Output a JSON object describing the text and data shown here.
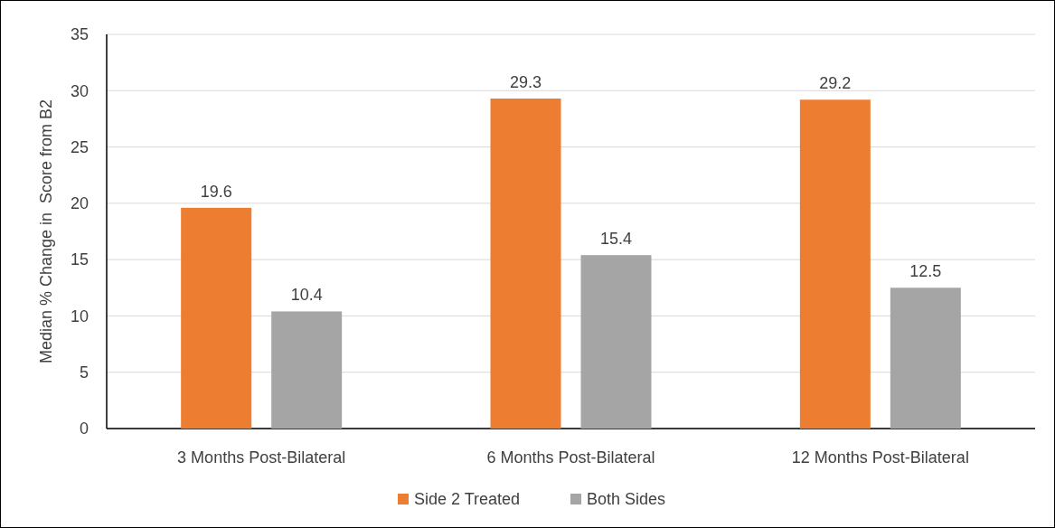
{
  "chart_data": {
    "type": "bar",
    "ylabel": "Median % Change in  Score from B2",
    "categories": [
      "3 Months Post-Bilateral",
      "6 Months Post-Bilateral",
      "12 Months Post-Bilateral"
    ],
    "series": [
      {
        "name": "Side 2 Treated",
        "color": "#ed7d31",
        "values": [
          19.6,
          29.3,
          29.2
        ]
      },
      {
        "name": "Both Sides",
        "color": "#a5a5a5",
        "values": [
          10.4,
          15.4,
          12.5
        ]
      }
    ],
    "ylim": [
      0,
      35
    ],
    "yticks": [
      0,
      5,
      10,
      15,
      20,
      25,
      30,
      35
    ],
    "grid": "y",
    "legend": "bottom",
    "data_labels": true
  }
}
